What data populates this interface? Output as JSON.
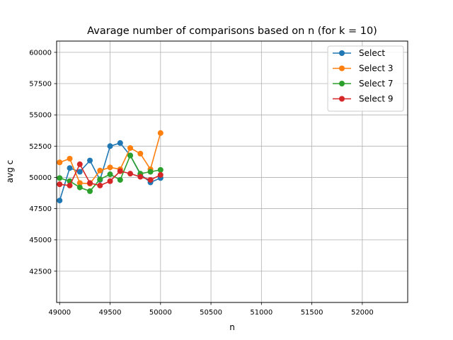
{
  "chart_data": {
    "type": "line",
    "title": "Avarage number of comparisons based on n (for k = 10)",
    "xlabel": "n",
    "ylabel": "avg c",
    "xlim": [
      48970,
      52450
    ],
    "ylim": [
      40000,
      60900
    ],
    "xticks": [
      49000,
      49500,
      50000,
      50500,
      51000,
      51500,
      52000
    ],
    "yticks": [
      42500,
      45000,
      47500,
      50000,
      52500,
      55000,
      57500,
      60000
    ],
    "grid": true,
    "legend_position": "top-right",
    "x": [
      49000,
      49100,
      49200,
      49300,
      49400,
      49500,
      49600,
      49700,
      49800,
      49900,
      50000
    ],
    "series": [
      {
        "name": "Select",
        "color": "#1f77b4",
        "values": [
          48150,
          50750,
          50450,
          51350,
          49800,
          52500,
          52750,
          51750,
          50250,
          49600,
          49950
        ]
      },
      {
        "name": "Select 3",
        "color": "#ff7f0e",
        "values": [
          51200,
          51500,
          49550,
          49500,
          50550,
          50800,
          50650,
          52350,
          51900,
          50650,
          53550
        ]
      },
      {
        "name": "Select 7",
        "color": "#2ca02c",
        "values": [
          49950,
          49700,
          49200,
          48900,
          49850,
          50250,
          49800,
          51750,
          50300,
          50450,
          50600
        ]
      },
      {
        "name": "Select 9",
        "color": "#d62728",
        "values": [
          49450,
          49350,
          51050,
          49550,
          49350,
          49700,
          50500,
          50300,
          50050,
          49800,
          50200
        ]
      }
    ]
  }
}
